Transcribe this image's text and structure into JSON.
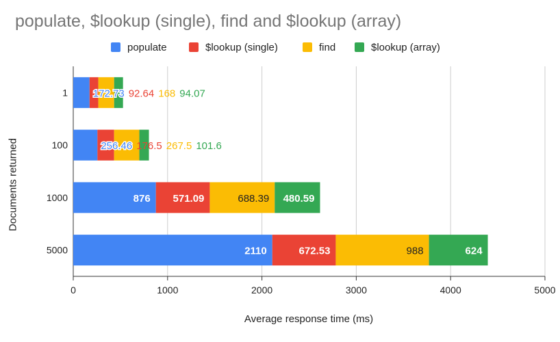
{
  "chart_data": {
    "type": "bar",
    "orientation": "horizontal",
    "stacked": true,
    "title": "populate, $lookup (single), find and $lookup (array)",
    "xlabel": "Average response time (ms)",
    "ylabel": "Documents returned",
    "categories": [
      "1",
      "100",
      "1000",
      "5000"
    ],
    "series": [
      {
        "name": "populate",
        "color": "#4285f4",
        "values": [
          172.73,
          256.46,
          876,
          2110
        ],
        "labels": [
          "172.73",
          "256.46",
          "876",
          "2110"
        ]
      },
      {
        "name": "$lookup (single)",
        "color": "#ea4335",
        "values": [
          92.64,
          176.5,
          571.09,
          672.53
        ],
        "labels": [
          "92.64",
          "176.5",
          "571.09",
          "672.53"
        ]
      },
      {
        "name": "find",
        "color": "#fbbc04",
        "values": [
          168,
          267.5,
          688.39,
          988
        ],
        "labels": [
          "168",
          "267.5",
          "688.39",
          "988"
        ]
      },
      {
        "name": "$lookup (array)",
        "color": "#34a853",
        "values": [
          94.07,
          101.6,
          480.59,
          624
        ],
        "labels": [
          "94.07",
          "101.6",
          "480.59",
          "624"
        ]
      }
    ],
    "xlim": [
      0,
      5000
    ],
    "xticks": [
      "0",
      "1000",
      "2000",
      "3000",
      "4000",
      "5000"
    ],
    "grid": true,
    "legend_position": "top"
  }
}
